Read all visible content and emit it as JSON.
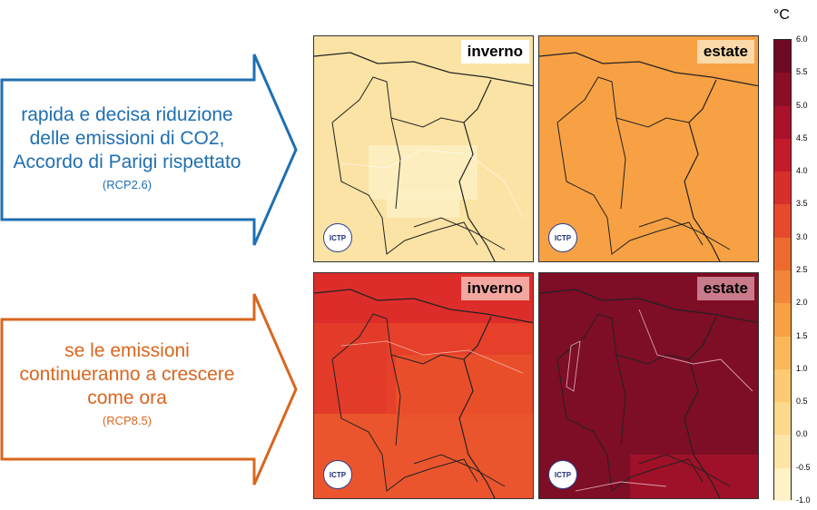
{
  "scenarios": [
    {
      "lines": [
        "rapida e decisa riduzione",
        "delle emissioni di CO2,",
        "Accordo di Parigi rispettato"
      ],
      "code": "(RCP2.6)",
      "color": "#1f6fb2"
    },
    {
      "lines": [
        "se le emissioni",
        "continueranno a crescere",
        "come ora"
      ],
      "code": "(RCP8.5)",
      "color": "#d9661f"
    }
  ],
  "maps": [
    {
      "season": "inverno",
      "logo": "ICTP",
      "fill": "#fbe3a5"
    },
    {
      "season": "estate",
      "logo": "ICTP",
      "fill": "#f7a144"
    },
    {
      "season": "inverno",
      "logo": "ICTP",
      "fill": "#e6402a"
    },
    {
      "season": "estate",
      "logo": "ICTP",
      "fill": "#7e0d26"
    }
  ],
  "colorbar": {
    "unit": "°C",
    "labels": [
      "6.0",
      "5.5",
      "5.0",
      "4.5",
      "4.0",
      "3.5",
      "3.0",
      "2.5",
      "2.0",
      "1.5",
      "1.0",
      "0.5",
      "0.0",
      "-0.5",
      "-1.0"
    ],
    "colors": [
      "#6e0a23",
      "#8c0d26",
      "#a9122a",
      "#c41b2b",
      "#d92f2a",
      "#e64a2a",
      "#ee6a2e",
      "#f28538",
      "#f7a144",
      "#f9b75a",
      "#fbca72",
      "#fcd98c",
      "#fde5a8",
      "#fef2c6"
    ]
  }
}
